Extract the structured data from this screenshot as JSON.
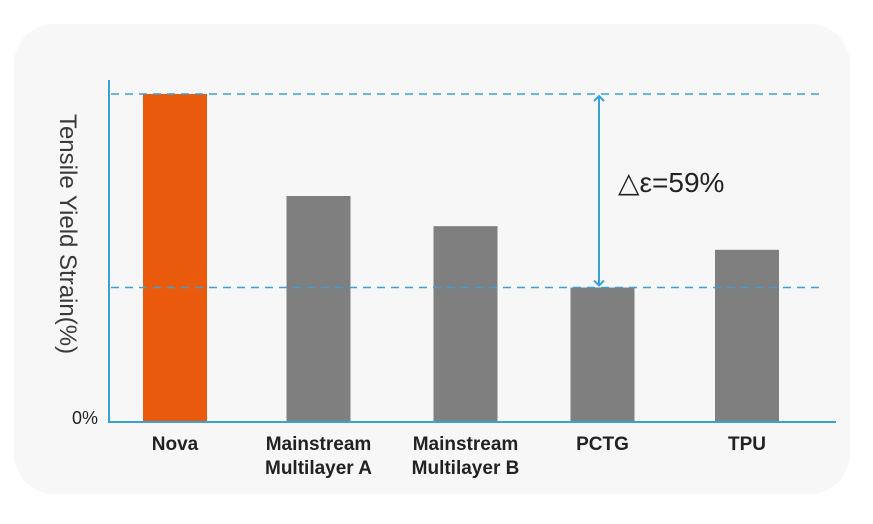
{
  "chart_data": {
    "type": "bar",
    "title": "",
    "ylabel": "Tensile Yield Strain(%)",
    "xlabel": "",
    "y_tick_labels": [
      "0%"
    ],
    "categories": [
      [
        "Nova"
      ],
      [
        "Mainstream",
        "Multilayer A"
      ],
      [
        "Mainstream",
        "Multilayer B"
      ],
      [
        "PCTG"
      ],
      [
        "TPU"
      ]
    ],
    "values": [
      100,
      68.9,
      59.7,
      41,
      52.5
    ],
    "ylim": [
      0,
      100
    ],
    "grid": false,
    "annotation": {
      "text": "△ε=59%",
      "from_value": 100,
      "to_value": 41
    },
    "colors": {
      "highlight": "#ea5a0c",
      "bars": "#7f7f7f",
      "axis": "#3aa0d8",
      "text": "#222222"
    }
  }
}
